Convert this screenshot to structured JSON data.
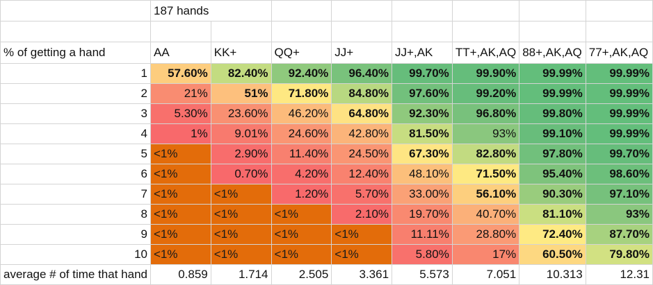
{
  "title": "187 hands",
  "row_header_label": "% of getting a hand",
  "average_label": "average # of time that hand",
  "columns": [
    "AA",
    "KK+",
    "QQ+",
    "JJ+",
    "JJ+,AK",
    "TT+,AK,AQ",
    "88+,AK,AQ",
    "77+,AK,AQ"
  ],
  "rows": [
    {
      "n": "1",
      "cells": [
        {
          "v": "57.60%",
          "bg": "#fdcd7e",
          "b": true
        },
        {
          "v": "82.40%",
          "bg": "#c3dc81",
          "b": true
        },
        {
          "v": "92.40%",
          "bg": "#8fc97d",
          "b": true
        },
        {
          "v": "96.40%",
          "bg": "#79c27c",
          "b": true
        },
        {
          "v": "99.70%",
          "bg": "#66bd7b",
          "b": true
        },
        {
          "v": "99.90%",
          "bg": "#65bd7b",
          "b": true
        },
        {
          "v": "99.99%",
          "bg": "#63be7b",
          "b": true
        },
        {
          "v": "99.99%",
          "bg": "#63be7b",
          "b": true
        }
      ]
    },
    {
      "n": "2",
      "cells": [
        {
          "v": "21%",
          "bg": "#f98c71",
          "b": false
        },
        {
          "v": "51%",
          "bg": "#fdc07d",
          "b": true
        },
        {
          "v": "71.80%",
          "bg": "#fee882",
          "b": true
        },
        {
          "v": "84.80%",
          "bg": "#b8d881",
          "b": true
        },
        {
          "v": "97.60%",
          "bg": "#72c07c",
          "b": true
        },
        {
          "v": "99.20%",
          "bg": "#67bd7b",
          "b": true
        },
        {
          "v": "99.99%",
          "bg": "#63be7b",
          "b": true
        },
        {
          "v": "99.99%",
          "bg": "#63be7b",
          "b": true
        }
      ]
    },
    {
      "n": "3",
      "cells": [
        {
          "v": "5.30%",
          "bg": "#f8706c",
          "b": false
        },
        {
          "v": "23.60%",
          "bg": "#f99072",
          "b": false
        },
        {
          "v": "46.20%",
          "bg": "#fcbb7b",
          "b": false
        },
        {
          "v": "64.80%",
          "bg": "#fee283",
          "b": true
        },
        {
          "v": "92.30%",
          "bg": "#8fc97d",
          "b": true
        },
        {
          "v": "96.80%",
          "bg": "#78c17c",
          "b": true
        },
        {
          "v": "99.80%",
          "bg": "#65bd7b",
          "b": true
        },
        {
          "v": "99.99%",
          "bg": "#63be7b",
          "b": true
        }
      ]
    },
    {
      "n": "4",
      "cells": [
        {
          "v": "1%",
          "bg": "#f8696b",
          "b": false
        },
        {
          "v": "9.01%",
          "bg": "#f87a6e",
          "b": false
        },
        {
          "v": "24.60%",
          "bg": "#fa9573",
          "b": false
        },
        {
          "v": "42.80%",
          "bg": "#fbb47a",
          "b": false
        },
        {
          "v": "81.50%",
          "bg": "#c7dd81",
          "b": true
        },
        {
          "v": "93%",
          "bg": "#8ac77e",
          "b": false
        },
        {
          "v": "99.10%",
          "bg": "#68bd7b",
          "b": true
        },
        {
          "v": "99.99%",
          "bg": "#63be7b",
          "b": true
        }
      ]
    },
    {
      "n": "5",
      "cells": [
        {
          "v": "<1%",
          "bg": "#e36c0a",
          "b": false,
          "lt": true
        },
        {
          "v": "2.90%",
          "bg": "#f86d6c",
          "b": false
        },
        {
          "v": "11.40%",
          "bg": "#f8806f",
          "b": false
        },
        {
          "v": "24.50%",
          "bg": "#fa9573",
          "b": false
        },
        {
          "v": "67.30%",
          "bg": "#fee583",
          "b": true
        },
        {
          "v": "82.80%",
          "bg": "#c2db81",
          "b": true
        },
        {
          "v": "97.80%",
          "bg": "#71c07c",
          "b": true
        },
        {
          "v": "99.70%",
          "bg": "#66bd7b",
          "b": true
        }
      ]
    },
    {
      "n": "6",
      "cells": [
        {
          "v": "<1%",
          "bg": "#e36c0a",
          "b": false,
          "lt": true
        },
        {
          "v": "0.70%",
          "bg": "#f8696b",
          "b": false
        },
        {
          "v": "4.20%",
          "bg": "#f86e6c",
          "b": false
        },
        {
          "v": "12.40%",
          "bg": "#f9826f",
          "b": false
        },
        {
          "v": "48.10%",
          "bg": "#fcbf7b",
          "b": false
        },
        {
          "v": "71.50%",
          "bg": "#fee982",
          "b": true
        },
        {
          "v": "95.40%",
          "bg": "#7ec37c",
          "b": true
        },
        {
          "v": "98.60%",
          "bg": "#6cbf7b",
          "b": true
        }
      ]
    },
    {
      "n": "7",
      "cells": [
        {
          "v": "<1%",
          "bg": "#e36c0a",
          "b": false,
          "lt": true
        },
        {
          "v": "<1%",
          "bg": "#e36c0a",
          "b": false,
          "lt": true
        },
        {
          "v": "1.20%",
          "bg": "#f86a6b",
          "b": false
        },
        {
          "v": "5.70%",
          "bg": "#f8716c",
          "b": false
        },
        {
          "v": "33.00%",
          "bg": "#faa176",
          "b": false
        },
        {
          "v": "56.10%",
          "bg": "#fdcf7e",
          "b": true
        },
        {
          "v": "90.30%",
          "bg": "#99cc7d",
          "b": true
        },
        {
          "v": "97.10%",
          "bg": "#76c17c",
          "b": true
        }
      ]
    },
    {
      "n": "8",
      "cells": [
        {
          "v": "<1%",
          "bg": "#e36c0a",
          "b": false,
          "lt": true
        },
        {
          "v": "<1%",
          "bg": "#e36c0a",
          "b": false,
          "lt": true
        },
        {
          "v": "<1%",
          "bg": "#e36c0a",
          "b": false,
          "lt": true
        },
        {
          "v": "2.10%",
          "bg": "#f86b6b",
          "b": false
        },
        {
          "v": "19.70%",
          "bg": "#f98970",
          "b": false
        },
        {
          "v": "40.70%",
          "bg": "#fbb079",
          "b": false
        },
        {
          "v": "81.10%",
          "bg": "#cadf81",
          "b": true
        },
        {
          "v": "93%",
          "bg": "#8ac77e",
          "b": true
        }
      ]
    },
    {
      "n": "9",
      "cells": [
        {
          "v": "<1%",
          "bg": "#e36c0a",
          "b": false,
          "lt": true
        },
        {
          "v": "<1%",
          "bg": "#e36c0a",
          "b": false,
          "lt": true
        },
        {
          "v": "<1%",
          "bg": "#e36c0a",
          "b": false,
          "lt": true
        },
        {
          "v": "<1%",
          "bg": "#e36c0a",
          "b": false,
          "lt": true
        },
        {
          "v": "11.11%",
          "bg": "#f87f6e",
          "b": false
        },
        {
          "v": "28.80%",
          "bg": "#fa9a75",
          "b": false
        },
        {
          "v": "72.40%",
          "bg": "#feea83",
          "b": true
        },
        {
          "v": "87.70%",
          "bg": "#a7d27f",
          "b": true
        }
      ]
    },
    {
      "n": "10",
      "cells": [
        {
          "v": "<1%",
          "bg": "#e36c0a",
          "b": false,
          "lt": true
        },
        {
          "v": "<1%",
          "bg": "#e36c0a",
          "b": false,
          "lt": true
        },
        {
          "v": "<1%",
          "bg": "#e36c0a",
          "b": false,
          "lt": true
        },
        {
          "v": "<1%",
          "bg": "#e36c0a",
          "b": false,
          "lt": true
        },
        {
          "v": "5.80%",
          "bg": "#f8716c",
          "b": false
        },
        {
          "v": "17%",
          "bg": "#f9876f",
          "b": false
        },
        {
          "v": "60.50%",
          "bg": "#fdd881",
          "b": true
        },
        {
          "v": "79.80%",
          "bg": "#d2e182",
          "b": true
        }
      ]
    }
  ],
  "averages": [
    "0.859",
    "1.714",
    "2.505",
    "3.361",
    "5.573",
    "7.051",
    "10.313",
    "12.31"
  ]
}
